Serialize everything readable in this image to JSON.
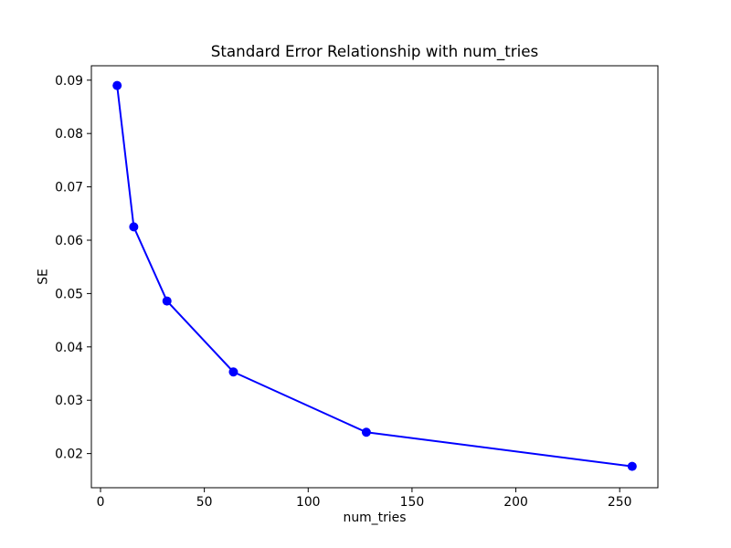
{
  "chart_data": {
    "type": "line",
    "title": "Standard Error Relationship with num_tries",
    "xlabel": "num_tries",
    "ylabel": "SE",
    "x": [
      8,
      16,
      32,
      64,
      128,
      256
    ],
    "y": [
      0.089,
      0.0625,
      0.0486,
      0.0353,
      0.024,
      0.0176
    ],
    "series": [
      {
        "name": "SE",
        "x": [
          8,
          16,
          32,
          64,
          128,
          256
        ],
        "values": [
          0.089,
          0.0625,
          0.0486,
          0.0353,
          0.024,
          0.0176
        ]
      }
    ],
    "x_ticks": [
      0,
      50,
      100,
      150,
      200,
      250
    ],
    "y_ticks": [
      0.02,
      0.03,
      0.04,
      0.05,
      0.06,
      0.07,
      0.08,
      0.09
    ],
    "xlim": [
      -4.4,
      268.4
    ],
    "ylim": [
      0.0136,
      0.0927
    ],
    "grid": false,
    "legend": "none",
    "line_color": "#0000ff",
    "marker": "circle",
    "marker_color": "#0000ff",
    "spine_color": "#000000",
    "background_color": "#ffffff",
    "y_tick_decimals": 2
  }
}
